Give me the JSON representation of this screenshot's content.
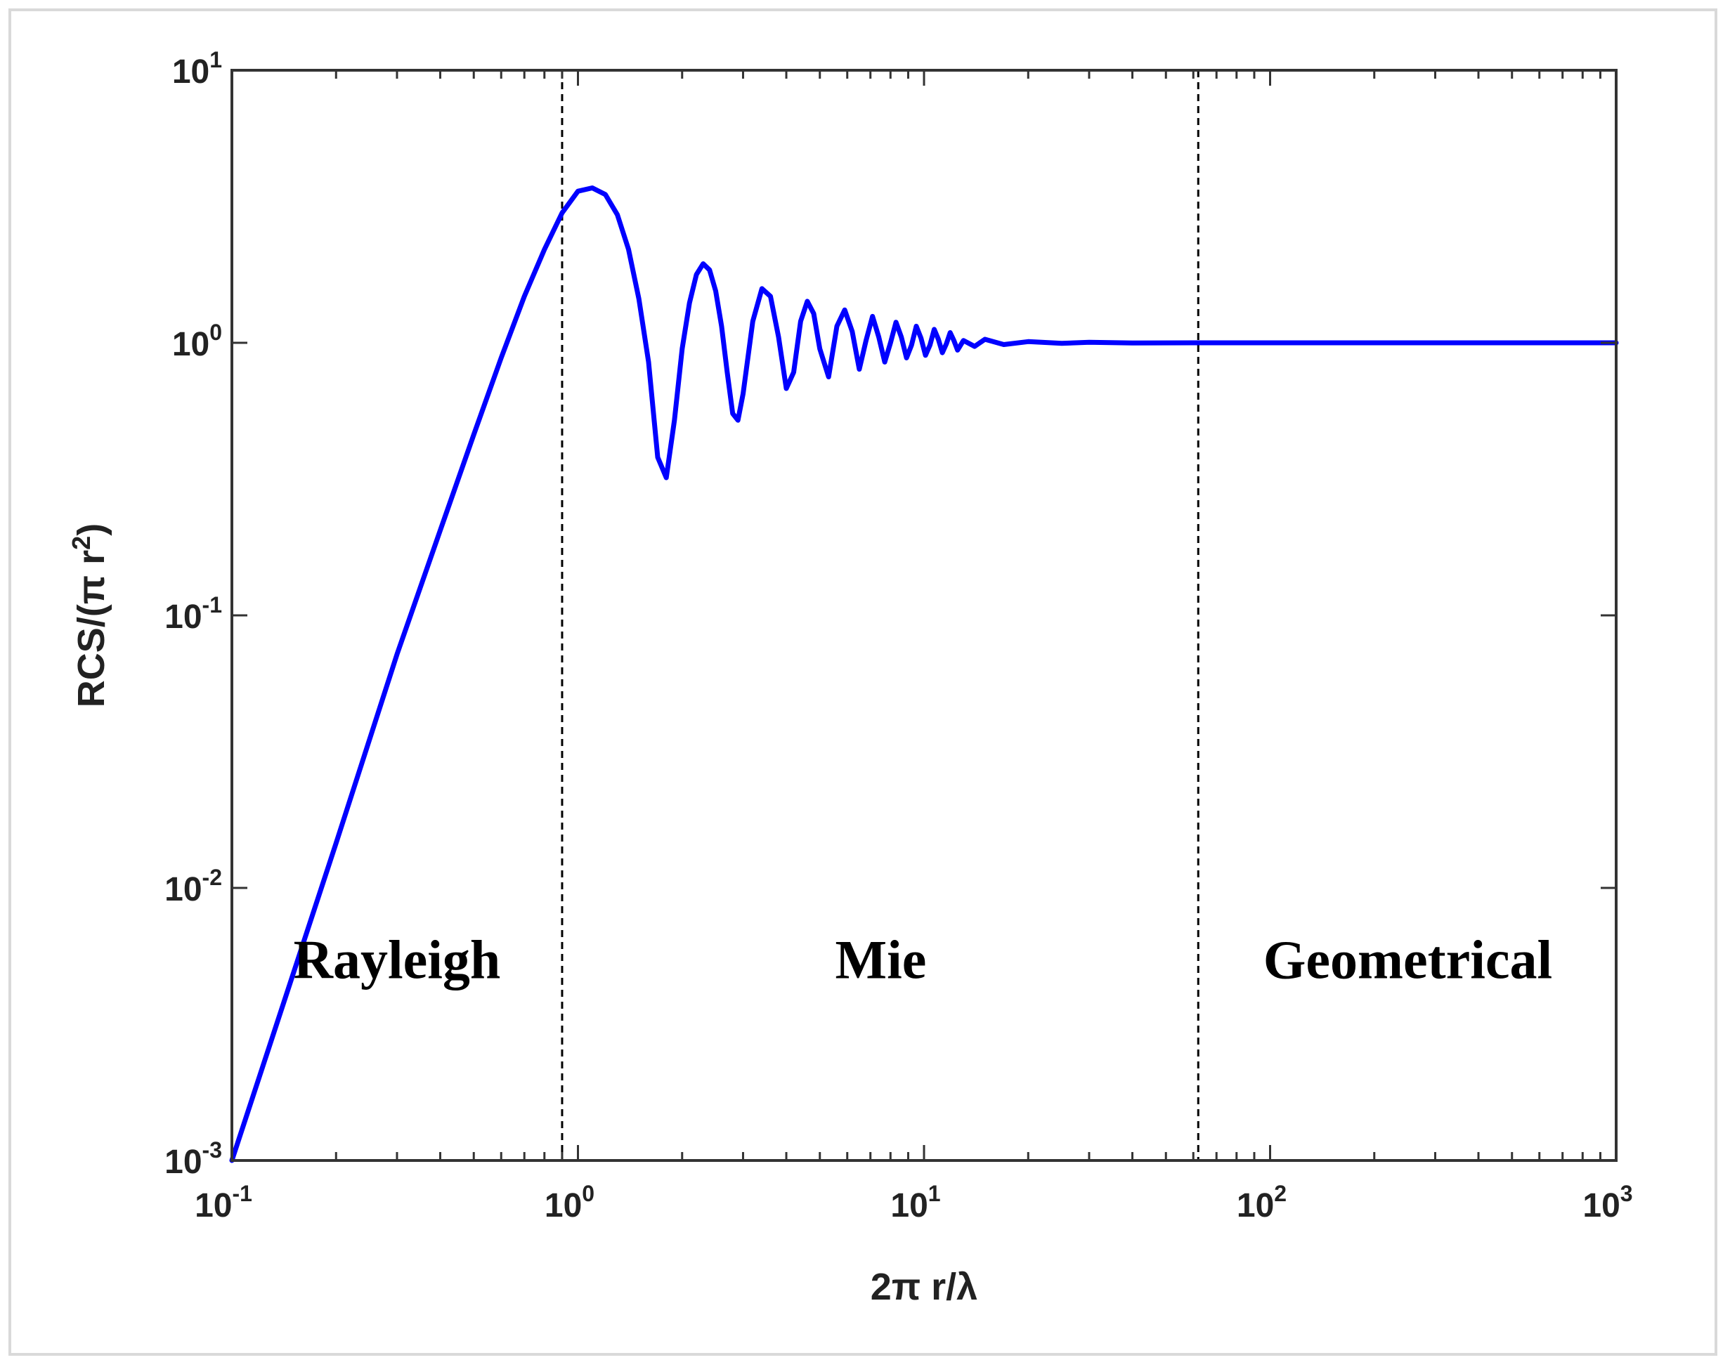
{
  "chart_data": {
    "type": "line",
    "x_scale": "log",
    "y_scale": "log",
    "xlim": [
      0.1,
      1000
    ],
    "ylim": [
      0.001,
      10
    ],
    "x_ticks": [
      {
        "value": 0.1,
        "base": "10",
        "exp": "-1"
      },
      {
        "value": 1,
        "base": "10",
        "exp": "0"
      },
      {
        "value": 10,
        "base": "10",
        "exp": "1"
      },
      {
        "value": 100,
        "base": "10",
        "exp": "2"
      },
      {
        "value": 1000,
        "base": "10",
        "exp": "3"
      }
    ],
    "y_ticks": [
      {
        "value": 0.001,
        "base": "10",
        "exp": "-3"
      },
      {
        "value": 0.01,
        "base": "10",
        "exp": "-2"
      },
      {
        "value": 0.1,
        "base": "10",
        "exp": "-1"
      },
      {
        "value": 1,
        "base": "10",
        "exp": "0"
      },
      {
        "value": 10,
        "base": "10",
        "exp": "1"
      }
    ],
    "xlabel": "2π r/λ",
    "ylabel_main": "RCS/(π r",
    "ylabel_sup": "2",
    "ylabel_end": ")",
    "grid": false,
    "series": [
      {
        "color": "#0000ff",
        "x": [
          0.1,
          0.2,
          0.3,
          0.4,
          0.5,
          0.6,
          0.7,
          0.8,
          0.9,
          1.0,
          1.1,
          1.2,
          1.3,
          1.4,
          1.5,
          1.6,
          1.7,
          1.8,
          1.9,
          2.0,
          2.1,
          2.2,
          2.3,
          2.4,
          2.5,
          2.6,
          2.7,
          2.8,
          2.9,
          3.0,
          3.2,
          3.4,
          3.6,
          3.8,
          4.0,
          4.2,
          4.4,
          4.6,
          4.8,
          5.0,
          5.3,
          5.6,
          5.9,
          6.2,
          6.5,
          6.8,
          7.1,
          7.4,
          7.7,
          8.0,
          8.3,
          8.6,
          8.9,
          9.2,
          9.5,
          9.8,
          10.1,
          10.4,
          10.7,
          11.0,
          11.3,
          11.6,
          11.9,
          12.2,
          12.5,
          13.0,
          14.0,
          15.0,
          17.0,
          20.0,
          25.0,
          30.0,
          40.0,
          60.0,
          100.0,
          200.0,
          500.0,
          1000.0
        ],
        "y": [
          0.001,
          0.0146,
          0.072,
          0.205,
          0.46,
          0.88,
          1.48,
          2.2,
          3.0,
          3.6,
          3.7,
          3.5,
          2.95,
          2.2,
          1.45,
          0.85,
          0.38,
          0.32,
          0.52,
          0.95,
          1.4,
          1.78,
          1.95,
          1.85,
          1.55,
          1.15,
          0.78,
          0.55,
          0.52,
          0.65,
          1.2,
          1.58,
          1.48,
          1.05,
          0.68,
          0.78,
          1.2,
          1.42,
          1.28,
          0.95,
          0.75,
          1.15,
          1.32,
          1.1,
          0.8,
          1.02,
          1.25,
          1.05,
          0.85,
          1.0,
          1.19,
          1.05,
          0.88,
          0.98,
          1.15,
          1.04,
          0.9,
          0.98,
          1.12,
          1.03,
          0.92,
          0.99,
          1.09,
          1.02,
          0.94,
          1.02,
          0.97,
          1.03,
          0.985,
          1.01,
          0.995,
          1.005,
          0.998,
          1.0,
          1.0,
          1.0,
          1.0,
          1.0
        ]
      }
    ],
    "vlines": [
      0.9,
      62
    ],
    "regions": [
      {
        "label": "Rayleigh",
        "x": 0.3,
        "y": 0.0055
      },
      {
        "label": "Mie",
        "x": 7.5,
        "y": 0.0055
      },
      {
        "label": "Geometrical",
        "x": 250,
        "y": 0.0055
      }
    ]
  }
}
